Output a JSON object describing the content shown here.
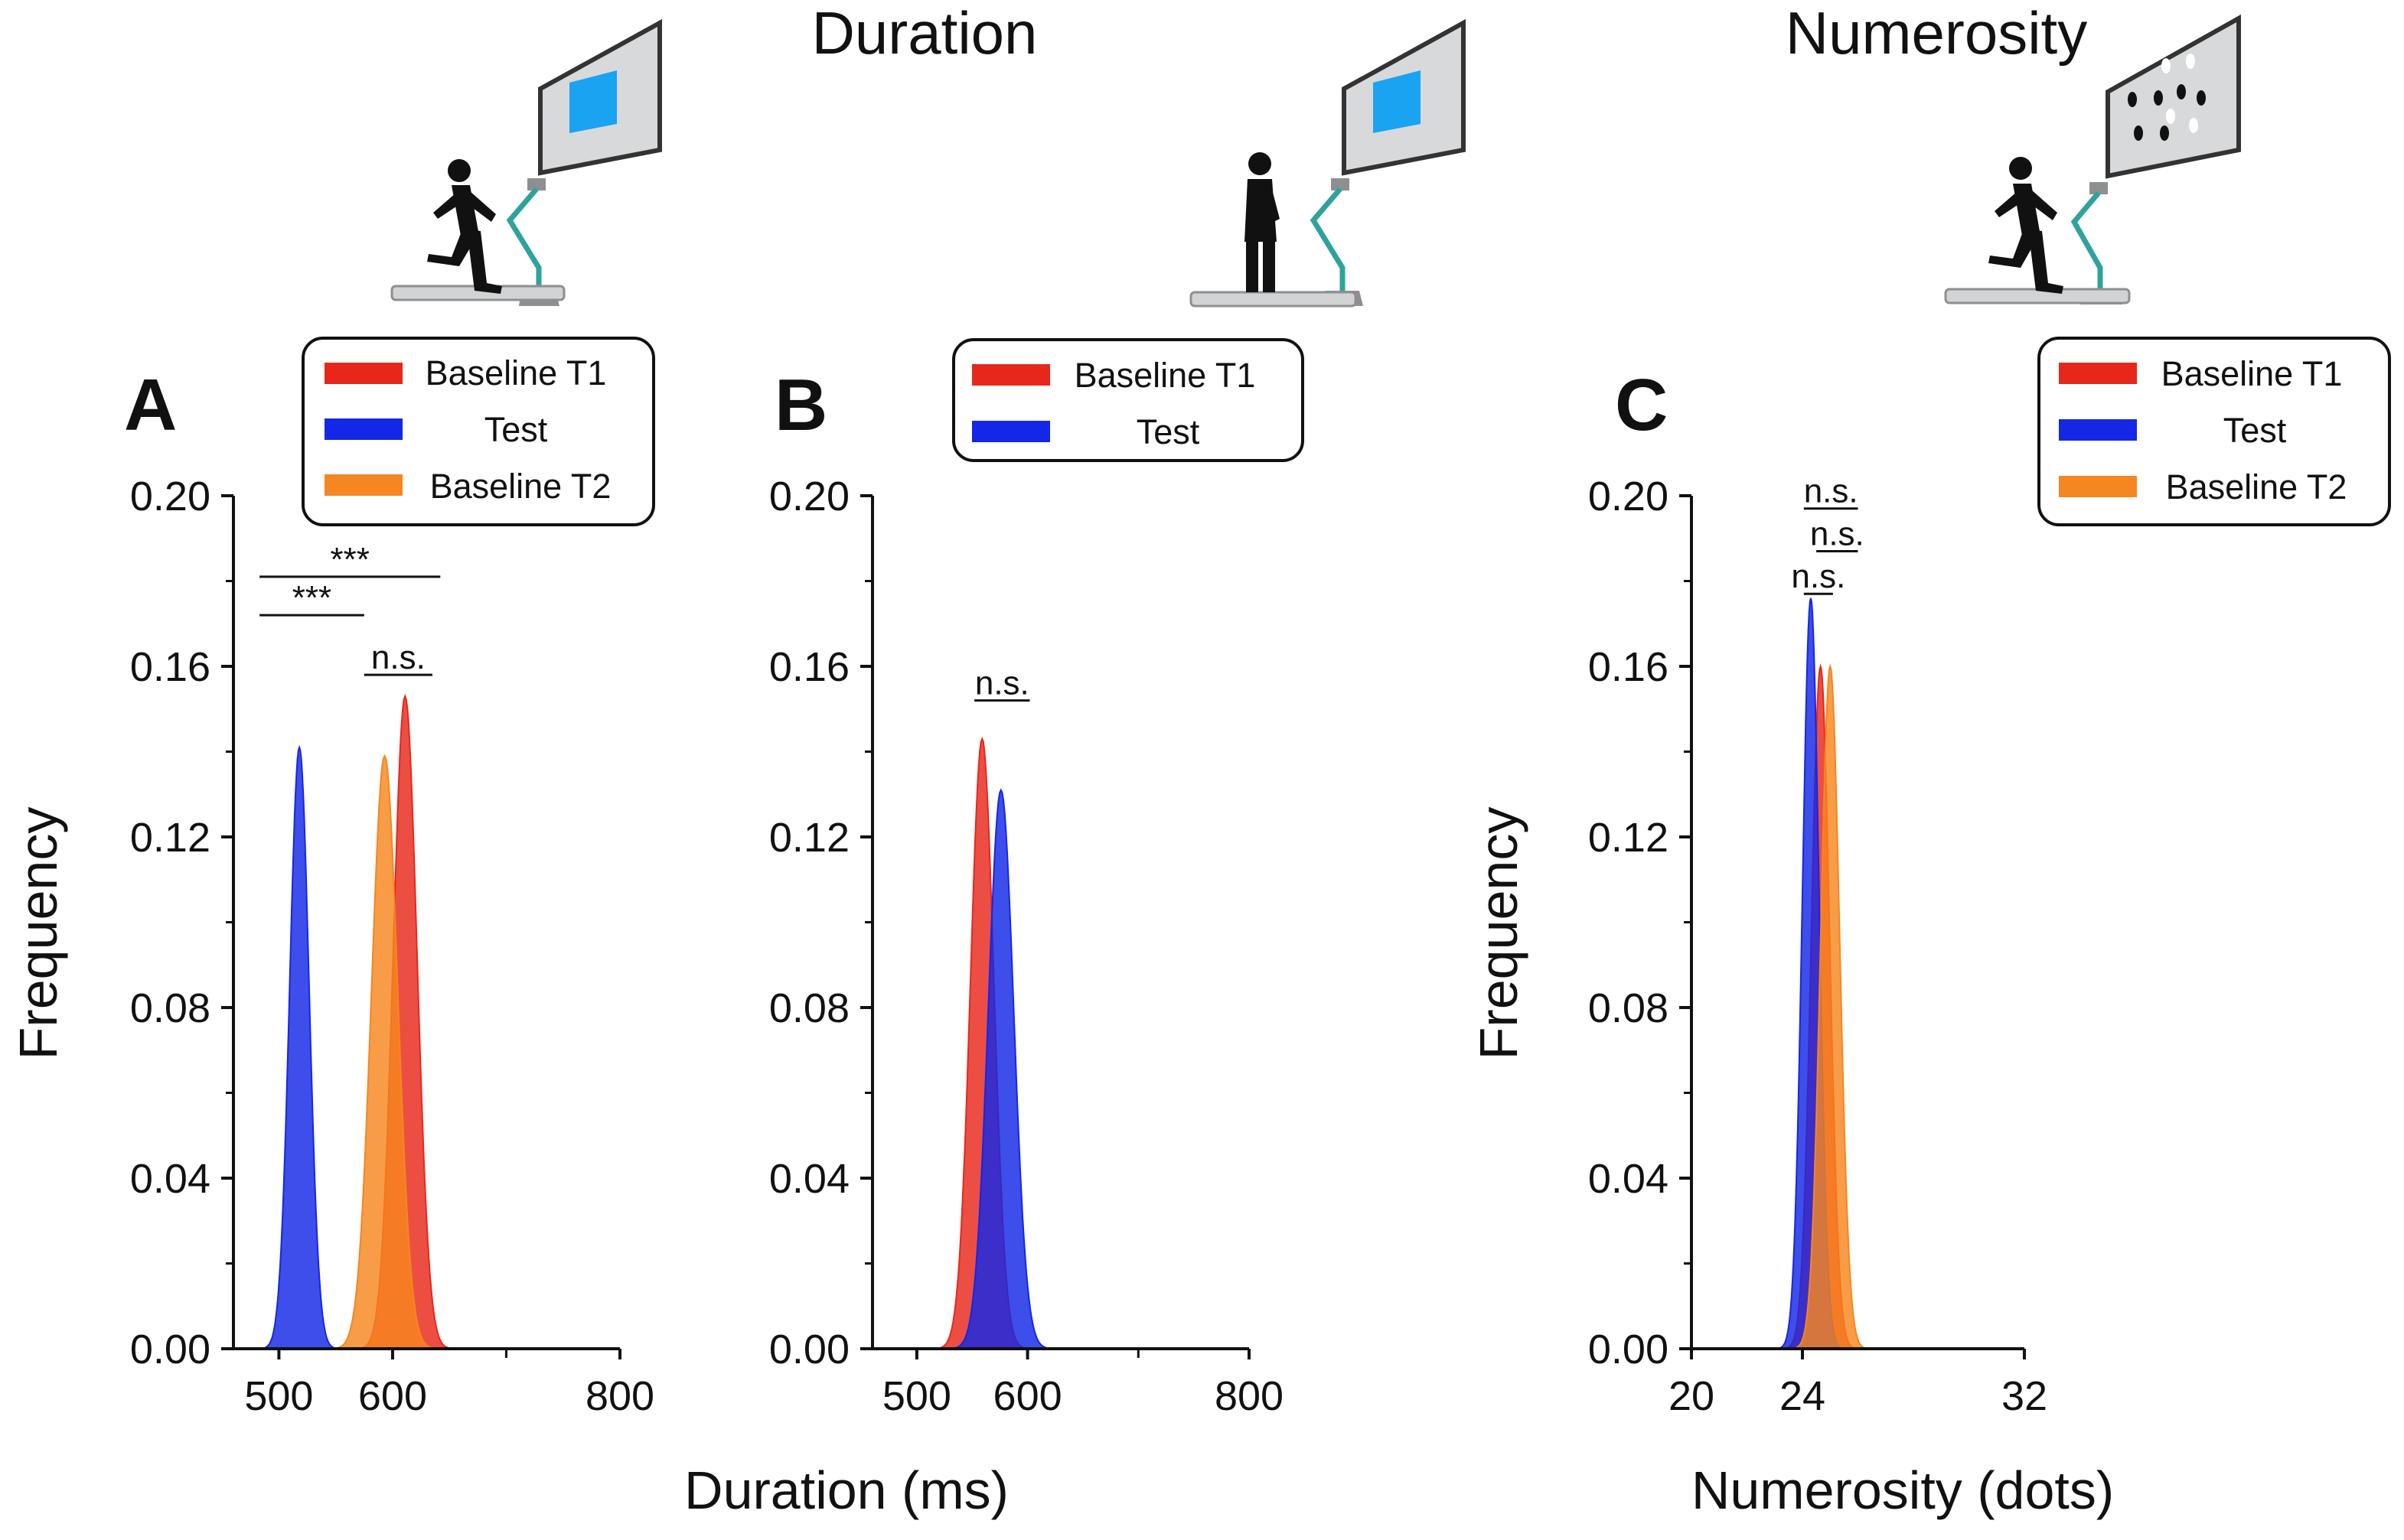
{
  "headings": {
    "duration": "Duration",
    "numerosity": "Numerosity"
  },
  "colors": {
    "baseline_t1": "#e8271b",
    "test": "#1427e6",
    "baseline_t2": "#f6861f",
    "screen_stim": "#1aa3f0",
    "screen_bg": "#d8d9da",
    "arm": "#2ea39c",
    "base": "#8e8f91"
  },
  "icons": [
    "treadmill-running-icon",
    "treadmill-standing-icon",
    "treadmill-running-dots-icon"
  ],
  "chart_data": [
    {
      "id": "A",
      "type": "area",
      "panel_label": "A",
      "xlabel": "Duration (ms)",
      "ylabel": "Frequency",
      "xlim": [
        460,
        800
      ],
      "ylim": [
        0,
        0.2
      ],
      "xticks": [
        500,
        600,
        800
      ],
      "xticklabels": [
        "500",
        "600",
        "800"
      ],
      "xminorticks": [
        700
      ],
      "yticks": [
        0,
        0.04,
        0.08,
        0.12,
        0.16,
        0.2
      ],
      "yticklabels": [
        "0.00",
        "0.04",
        "0.08",
        "0.12",
        "0.16",
        "0.20"
      ],
      "series": [
        {
          "name": "Baseline T1",
          "color": "#e8271b",
          "mean": 611,
          "sd": 10.5,
          "peak": 0.153
        },
        {
          "name": "Test",
          "color": "#1427e6",
          "mean": 518,
          "sd": 8.5,
          "peak": 0.141
        },
        {
          "name": "Baseline T2",
          "color": "#f6861f",
          "mean": 593,
          "sd": 11.5,
          "peak": 0.139
        }
      ],
      "legend": [
        "Baseline T1",
        "Test",
        "Baseline T2"
      ],
      "significance": [
        {
          "label": "***",
          "x1": 483,
          "x2": 642,
          "y": 0.181
        },
        {
          "label": "***",
          "x1": 483,
          "x2": 575,
          "y": 0.172
        },
        {
          "label": "n.s.",
          "x1": 575,
          "x2": 635,
          "y": 0.158
        }
      ]
    },
    {
      "id": "B",
      "type": "area",
      "panel_label": "B",
      "xlabel": "Duration (ms)",
      "ylabel": "",
      "xlim": [
        460,
        800
      ],
      "ylim": [
        0,
        0.2
      ],
      "xticks": [
        500,
        600,
        800
      ],
      "xticklabels": [
        "500",
        "600",
        "800"
      ],
      "xminorticks": [
        700
      ],
      "yticks": [
        0,
        0.04,
        0.08,
        0.12,
        0.16,
        0.2
      ],
      "yticklabels": [
        "0.00",
        "0.04",
        "0.08",
        "0.12",
        "0.16",
        "0.20"
      ],
      "series": [
        {
          "name": "Baseline T1",
          "color": "#e8271b",
          "mean": 559,
          "sd": 10.5,
          "peak": 0.143
        },
        {
          "name": "Test",
          "color": "#1427e6",
          "mean": 576,
          "sd": 11.5,
          "peak": 0.131
        }
      ],
      "legend": [
        "Baseline T1",
        "Test"
      ],
      "significance": [
        {
          "label": "n.s.",
          "x1": 552,
          "x2": 602,
          "y": 0.152
        }
      ]
    },
    {
      "id": "C",
      "type": "area",
      "panel_label": "C",
      "xlabel": "Numerosity (dots)",
      "ylabel": "Frequency",
      "xlim": [
        20,
        32
      ],
      "ylim": [
        0,
        0.2
      ],
      "xticks": [
        20,
        24,
        32
      ],
      "xticklabels": [
        "20",
        "24",
        "32"
      ],
      "xminorticks": [],
      "yticks": [
        0,
        0.04,
        0.08,
        0.12,
        0.16,
        0.2
      ],
      "yticklabels": [
        "0.00",
        "0.04",
        "0.08",
        "0.12",
        "0.16",
        "0.20"
      ],
      "series": [
        {
          "name": "Baseline T1",
          "color": "#e8271b",
          "mean": 24.65,
          "sd": 0.33,
          "peak": 0.16
        },
        {
          "name": "Test",
          "color": "#1427e6",
          "mean": 24.3,
          "sd": 0.3,
          "peak": 0.176
        },
        {
          "name": "Baseline T2",
          "color": "#f6861f",
          "mean": 25.0,
          "sd": 0.34,
          "peak": 0.16
        }
      ],
      "legend": [
        "Baseline T1",
        "Test",
        "Baseline T2"
      ],
      "significance": [
        {
          "label": "n.s.",
          "x1": 24.05,
          "x2": 26.0,
          "y": 0.197
        },
        {
          "label": "n.s.",
          "x1": 24.5,
          "x2": 26.0,
          "y": 0.187
        },
        {
          "label": "n.s.",
          "x1": 24.05,
          "x2": 25.1,
          "y": 0.177
        }
      ]
    }
  ]
}
